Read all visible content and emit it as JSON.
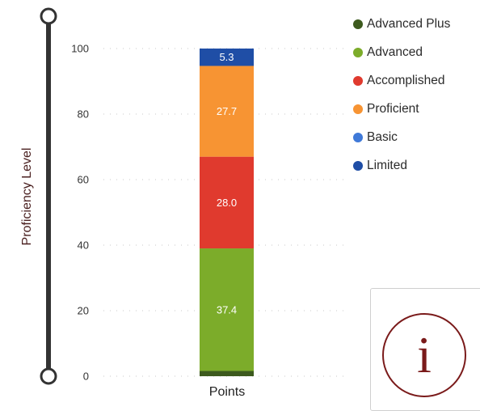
{
  "chart_data": {
    "type": "bar",
    "stacked": true,
    "categories": [
      "Points"
    ],
    "series": [
      {
        "name": "Advanced Plus",
        "values": [
          1.6
        ],
        "color": "#3d5a1e",
        "label": ""
      },
      {
        "name": "Advanced",
        "values": [
          37.4
        ],
        "color": "#7cac2a",
        "label": "37.4"
      },
      {
        "name": "Accomplished",
        "values": [
          28.0
        ],
        "color": "#e03a2e",
        "label": "28.0"
      },
      {
        "name": "Proficient",
        "values": [
          27.7
        ],
        "color": "#f79433",
        "label": "27.7"
      },
      {
        "name": "Basic",
        "values": [
          0.0
        ],
        "color": "#3f79d8",
        "label": ""
      },
      {
        "name": "Limited",
        "values": [
          5.3
        ],
        "color": "#1f4ea6",
        "label": "5.3"
      }
    ],
    "ylabel": "Proficiency Level",
    "ylim": [
      0,
      100
    ],
    "yticks": [
      "0",
      "20",
      "40",
      "60",
      "80",
      "100"
    ],
    "grid": true,
    "legend_position": "top-right"
  },
  "slider": {
    "icon": "range-slider-handle"
  },
  "info": {
    "glyph": "i",
    "icon": "info-icon",
    "color": "#7a1a1a"
  }
}
